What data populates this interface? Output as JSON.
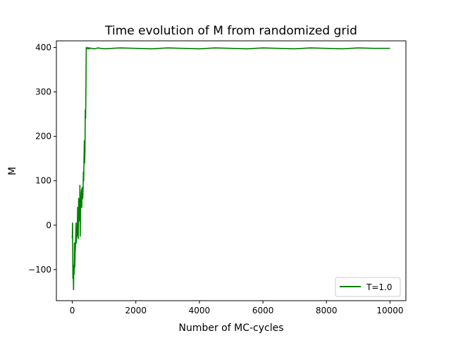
{
  "chart_data": {
    "type": "line",
    "title": "Time evolution of M from randomized grid",
    "xlabel": "Number of MC-cycles",
    "ylabel": "M",
    "xlim": [
      -500,
      10500
    ],
    "ylim": [
      -170,
      415
    ],
    "xticks": [
      0,
      2000,
      4000,
      6000,
      8000,
      10000
    ],
    "xtick_labels": [
      "0",
      "2000",
      "4000",
      "6000",
      "8000",
      "10000"
    ],
    "yticks": [
      -100,
      0,
      100,
      200,
      300,
      400
    ],
    "ytick_labels": [
      "−100",
      "0",
      "100",
      "200",
      "300",
      "400"
    ],
    "grid": false,
    "legend_position": "lower-right",
    "series": [
      {
        "name": "T=1.0",
        "color": "#008000",
        "x": [
          0,
          10,
          20,
          30,
          40,
          50,
          60,
          70,
          80,
          90,
          100,
          110,
          120,
          130,
          140,
          150,
          160,
          170,
          180,
          190,
          200,
          210,
          220,
          230,
          240,
          250,
          260,
          270,
          280,
          290,
          300,
          310,
          320,
          330,
          340,
          350,
          360,
          370,
          380,
          390,
          400,
          410,
          420,
          430,
          440,
          450,
          460,
          470,
          480,
          490,
          500,
          510,
          520,
          530,
          540,
          560,
          600,
          700,
          800,
          900,
          1000,
          1500,
          2000,
          2500,
          3000,
          3500,
          4000,
          4500,
          5000,
          5500,
          6000,
          6500,
          7000,
          7500,
          8000,
          8500,
          9000,
          9500,
          10000
        ],
        "values": [
          -30,
          5,
          -120,
          -100,
          -145,
          -90,
          -110,
          -40,
          -95,
          -60,
          -50,
          -20,
          5,
          -40,
          -10,
          -25,
          0,
          40,
          10,
          -30,
          60,
          20,
          55,
          10,
          90,
          -25,
          35,
          50,
          70,
          80,
          40,
          85,
          70,
          60,
          80,
          120,
          100,
          150,
          190,
          140,
          170,
          260,
          240,
          300,
          400,
          398,
          397,
          399,
          398,
          400,
          398,
          397,
          399,
          398,
          397,
          399,
          398,
          397,
          399,
          398,
          397,
          399,
          398,
          397,
          399,
          398,
          397,
          399,
          398,
          397,
          399,
          398,
          397,
          399,
          398,
          397,
          399,
          398,
          398
        ]
      }
    ]
  }
}
